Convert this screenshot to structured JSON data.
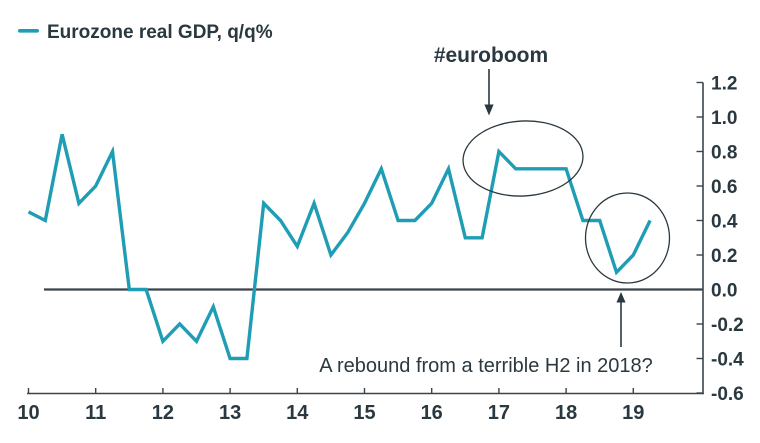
{
  "legend": {
    "label": "Eurozone real GDP, q/q%",
    "swatch_color": "#1f9db4"
  },
  "annotations": {
    "euroboom": "#euroboom",
    "rebound": "A rebound from a terrible H2 in 2018?"
  },
  "colors": {
    "line": "#1f9db4",
    "axis": "#3a444c",
    "text": "#2a3840",
    "background": "#ffffff"
  },
  "chart_data": {
    "type": "line",
    "title": "",
    "xlabel": "",
    "ylabel": "",
    "legend_position": "top-left",
    "y_axis_side": "right",
    "grid": false,
    "zero_line": true,
    "ylim": [
      -0.6,
      1.2
    ],
    "y_ticks": [
      1.2,
      1.0,
      0.8,
      0.6,
      0.4,
      0.2,
      0.0,
      -0.2,
      -0.4,
      -0.6
    ],
    "y_tick_labels": [
      "1.2",
      "1.0",
      "0.8",
      "0.6",
      "0.4",
      "0.2",
      "0.0",
      "-0.2",
      "-0.4",
      "-0.6"
    ],
    "x_tick_labels": [
      "10",
      "11",
      "12",
      "13",
      "14",
      "15",
      "16",
      "17",
      "18",
      "19"
    ],
    "series": [
      {
        "name": "Eurozone real GDP, q/q%",
        "color": "#1f9db4",
        "quarters": [
          "2009Q4",
          "2010Q1",
          "2010Q2",
          "2010Q3",
          "2010Q4",
          "2011Q1",
          "2011Q2",
          "2011Q3",
          "2011Q4",
          "2012Q1",
          "2012Q2",
          "2012Q3",
          "2012Q4",
          "2013Q1",
          "2013Q2",
          "2013Q3",
          "2013Q4",
          "2014Q1",
          "2014Q2",
          "2014Q3",
          "2014Q4",
          "2015Q1",
          "2015Q2",
          "2015Q3",
          "2015Q4",
          "2016Q1",
          "2016Q2",
          "2016Q3",
          "2016Q4",
          "2017Q1",
          "2017Q2",
          "2017Q3",
          "2017Q4",
          "2018Q1",
          "2018Q2",
          "2018Q3",
          "2018Q4",
          "2019Q1"
        ],
        "values": [
          0.45,
          0.4,
          0.9,
          0.5,
          0.6,
          0.8,
          0.0,
          0.0,
          -0.3,
          -0.2,
          -0.3,
          -0.1,
          -0.4,
          -0.4,
          0.5,
          0.4,
          0.25,
          0.5,
          0.2,
          0.33,
          0.5,
          0.7,
          0.4,
          0.4,
          0.5,
          0.7,
          0.3,
          0.3,
          0.8,
          0.7,
          0.7,
          0.7,
          0.7,
          0.4,
          0.4,
          0.1,
          0.2,
          0.4
        ]
      }
    ],
    "annotated_regions": [
      {
        "label": "#euroboom",
        "covers": "2016Q4-2017Q4 plateau"
      },
      {
        "label": "A rebound from a terrible H2 in 2018?",
        "covers": "2018Q3-2019Q1 rebound"
      }
    ]
  }
}
